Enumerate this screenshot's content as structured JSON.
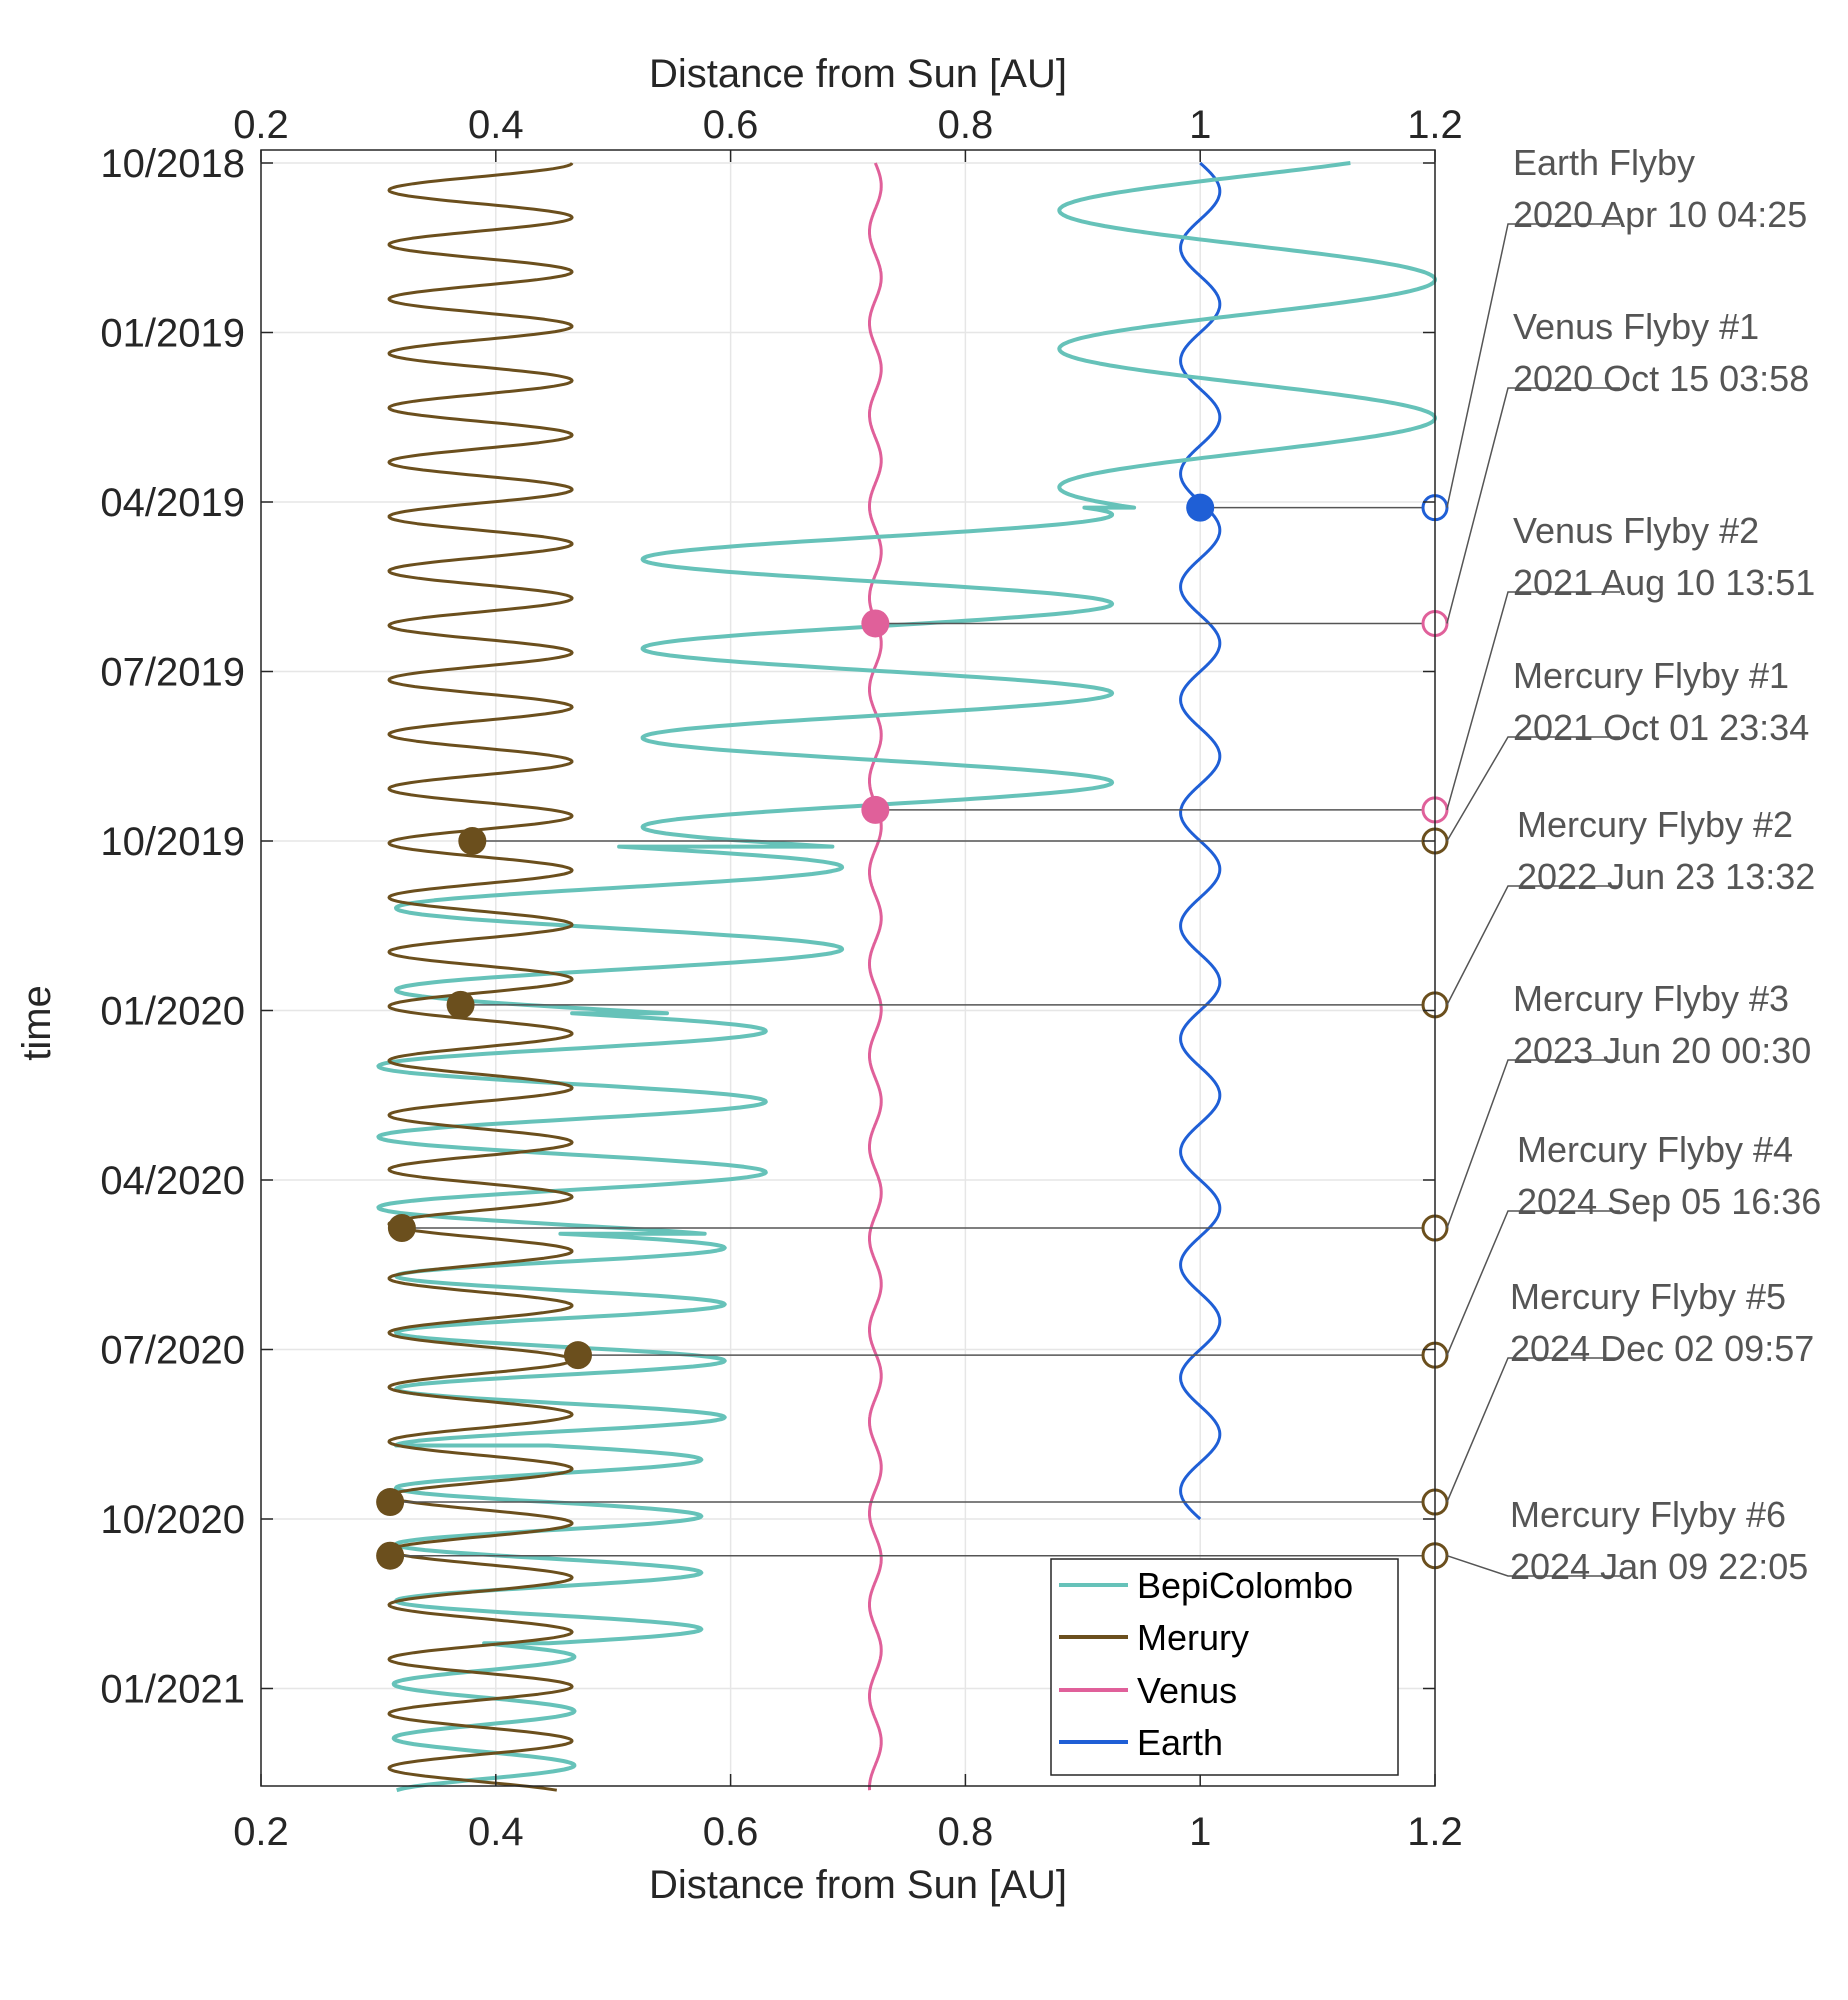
{
  "chart_data": {
    "type": "line",
    "xlabel_top": "Distance from Sun [AU]",
    "xlabel_bottom": "Distance from Sun [AU]",
    "ylabel": "time",
    "xlim": [
      0.2,
      1.2
    ],
    "x_ticks": [
      "0.2",
      "0.4",
      "0.6",
      "0.8",
      "1",
      "1.2"
    ],
    "x_tick_values": [
      0.2,
      0.4,
      0.6,
      0.8,
      1.0,
      1.2
    ],
    "ylim_months_since_2018_10": [
      0,
      29
    ],
    "y_ticks": [
      "10/2018",
      "01/2019",
      "04/2019",
      "07/2019",
      "10/2019",
      "01/2020",
      "04/2020",
      "07/2020",
      "10/2020",
      "01/2021"
    ],
    "y_tick_months": [
      0,
      3,
      6,
      9,
      12,
      15,
      18,
      21,
      24,
      27
    ],
    "grid": true,
    "legend_position": "bottom-right",
    "colors": {
      "bepicolombo": "#66c2b9",
      "mercury": "#6b4f1d",
      "venus": "#e0609a",
      "earth": "#1f5fd6",
      "annotation": "#555555"
    },
    "series": [
      {
        "name": "BepiColombo",
        "key": "bepicolombo",
        "segments": [
          {
            "t0": 0.0,
            "t1": 6.1,
            "mean": 1.04,
            "amp": 0.16,
            "period": 2.45,
            "phase": 2.56
          },
          {
            "t0": 6.1,
            "t1": 12.1,
            "mean": 0.725,
            "amp": 0.2,
            "period": 1.58,
            "phase": 1.08
          },
          {
            "t0": 12.1,
            "t1": 15.05,
            "mean": 0.505,
            "amp": 0.19,
            "period": 1.45,
            "phase": 0.0
          },
          {
            "t0": 15.05,
            "t1": 18.95,
            "mean": 0.465,
            "amp": 0.165,
            "period": 1.25,
            "phase": 0.0
          },
          {
            "t0": 18.95,
            "t1": 22.7,
            "mean": 0.455,
            "amp": 0.14,
            "period": 1.0,
            "phase": 0.0
          },
          {
            "t0": 22.7,
            "t1": 26.2,
            "mean": 0.445,
            "amp": 0.13,
            "period": 1.0,
            "phase": 0.0
          },
          {
            "t0": 26.2,
            "t1": 28.8,
            "mean": 0.39,
            "amp": 0.077,
            "period": 0.96,
            "phase": 0.0
          }
        ]
      },
      {
        "name": "Merury",
        "key": "mercury",
        "segments": [
          {
            "t0": 0.0,
            "t1": 28.8,
            "mean": 0.387,
            "amp": 0.078,
            "period": 0.963,
            "phase": 1.571
          }
        ]
      },
      {
        "name": "Venus",
        "key": "venus",
        "segments": [
          {
            "t0": 0.0,
            "t1": 28.8,
            "mean": 0.7233,
            "amp": 0.005,
            "period": 1.62,
            "phase": 0.0
          }
        ]
      },
      {
        "name": "Earth",
        "key": "earth",
        "segments": [
          {
            "t0": 0.0,
            "t1": 24.0,
            "mean": 1.0,
            "amp": 0.0167,
            "period": 2.0,
            "phase": 0.0
          }
        ]
      }
    ],
    "flyby_markers": [
      {
        "body": "earth",
        "x": 1.0,
        "t": 6.1
      },
      {
        "body": "venus",
        "x": 0.7233,
        "t": 8.15
      },
      {
        "body": "venus",
        "x": 0.7233,
        "t": 11.45
      },
      {
        "body": "mercury",
        "x": 0.38,
        "t": 12.0
      },
      {
        "body": "mercury",
        "x": 0.37,
        "t": 14.9
      },
      {
        "body": "mercury",
        "x": 0.32,
        "t": 18.85
      },
      {
        "body": "mercury",
        "x": 0.47,
        "t": 21.1
      },
      {
        "body": "mercury",
        "x": 0.31,
        "t": 23.7
      },
      {
        "body": "mercury",
        "x": 0.31,
        "t": 24.65
      }
    ],
    "annotations": [
      {
        "title": "Earth Flyby",
        "date": "2020 Apr 10 04:25",
        "body": "earth",
        "t": 6.1
      },
      {
        "title": "Venus Flyby #1",
        "date": "2020 Oct 15 03:58",
        "body": "venus",
        "t": 8.15
      },
      {
        "title": "Venus Flyby #2",
        "date": "2021 Aug 10 13:51",
        "body": "venus",
        "t": 11.45
      },
      {
        "title": "Mercury Flyby #1",
        "date": "2021 Oct 01 23:34",
        "body": "mercury",
        "t": 12.0
      },
      {
        "title": "Mercury Flyby #2",
        "date": "2022 Jun 23 13:32",
        "body": "mercury",
        "t": 14.9
      },
      {
        "title": "Mercury Flyby #3",
        "date": "2023 Jun 20 00:30",
        "body": "mercury",
        "t": 18.85
      },
      {
        "title": "Mercury Flyby #4",
        "date": "2024 Sep 05 16:36",
        "body": "mercury",
        "t": 21.1
      },
      {
        "title": "Mercury Flyby #5",
        "date": "2024 Dec 02 09:57",
        "body": "mercury",
        "t": 23.7
      },
      {
        "title": "Mercury Flyby #6",
        "date": "2024 Jan 09 22:05",
        "body": "mercury",
        "t": 24.65
      }
    ]
  }
}
